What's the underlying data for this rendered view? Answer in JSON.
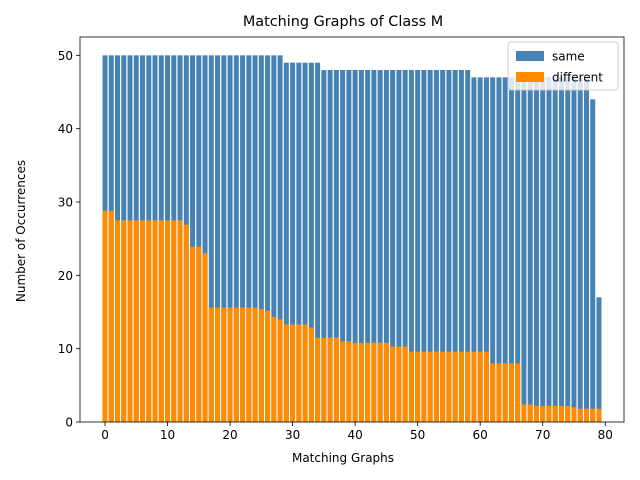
{
  "chart_data": {
    "type": "bar",
    "stacking": "overlay",
    "title": "Matching Graphs of Class M",
    "xlabel": "Matching Graphs",
    "ylabel": "Number of Occurrences",
    "xlim": [
      -4,
      83
    ],
    "ylim": [
      0,
      52.5
    ],
    "xticks": [
      0,
      10,
      20,
      30,
      40,
      50,
      60,
      70,
      80
    ],
    "yticks": [
      0,
      10,
      20,
      30,
      40,
      50
    ],
    "grid": false,
    "legend_placement": "top-right",
    "x": [
      0,
      1,
      2,
      3,
      4,
      5,
      6,
      7,
      8,
      9,
      10,
      11,
      12,
      13,
      14,
      15,
      16,
      17,
      18,
      19,
      20,
      21,
      22,
      23,
      24,
      25,
      26,
      27,
      28,
      29,
      30,
      31,
      32,
      33,
      34,
      35,
      36,
      37,
      38,
      39,
      40,
      41,
      42,
      43,
      44,
      45,
      46,
      47,
      48,
      49,
      50,
      51,
      52,
      53,
      54,
      55,
      56,
      57,
      58,
      59,
      60,
      61,
      62,
      63,
      64,
      65,
      66,
      67,
      68,
      69,
      70,
      71,
      72,
      73,
      74,
      75,
      76,
      77,
      78,
      79
    ],
    "series": [
      {
        "name": "same",
        "color": "#4682b4",
        "values": [
          50,
          50,
          50,
          50,
          50,
          50,
          50,
          50,
          50,
          50,
          50,
          50,
          50,
          50,
          50,
          50,
          50,
          50,
          50,
          50,
          50,
          50,
          50,
          50,
          50,
          50,
          50,
          50,
          50,
          49,
          49,
          49,
          49,
          49,
          49,
          48,
          48,
          48,
          48,
          48,
          48,
          48,
          48,
          48,
          48,
          48,
          48,
          48,
          48,
          48,
          48,
          48,
          48,
          48,
          48,
          48,
          48,
          48,
          48,
          47,
          47,
          47,
          47,
          47,
          47,
          47,
          47,
          47,
          47,
          47,
          47,
          47,
          47,
          47,
          47,
          47,
          47,
          47,
          44,
          17
        ]
      },
      {
        "name": "different",
        "color": "#ff8c00",
        "values": [
          28.8,
          28.8,
          27.5,
          27.5,
          27.5,
          27.5,
          27.5,
          27.5,
          27.5,
          27.5,
          27.5,
          27.5,
          27.5,
          26.9,
          23.9,
          23.9,
          23.0,
          15.6,
          15.6,
          15.6,
          15.6,
          15.6,
          15.6,
          15.6,
          15.6,
          15.4,
          15.2,
          14.3,
          14.0,
          13.3,
          13.3,
          13.3,
          13.3,
          12.9,
          11.5,
          11.5,
          11.5,
          11.5,
          11.0,
          11.0,
          10.8,
          10.8,
          10.8,
          10.8,
          10.8,
          10.8,
          10.3,
          10.3,
          10.3,
          9.6,
          9.6,
          9.6,
          9.6,
          9.6,
          9.6,
          9.6,
          9.6,
          9.6,
          9.6,
          9.6,
          9.6,
          9.6,
          8.0,
          8.0,
          8.0,
          8.0,
          8.0,
          2.4,
          2.4,
          2.2,
          2.2,
          2.2,
          2.2,
          2.2,
          2.2,
          2.0,
          1.8,
          1.8,
          1.8,
          1.8
        ]
      }
    ]
  }
}
